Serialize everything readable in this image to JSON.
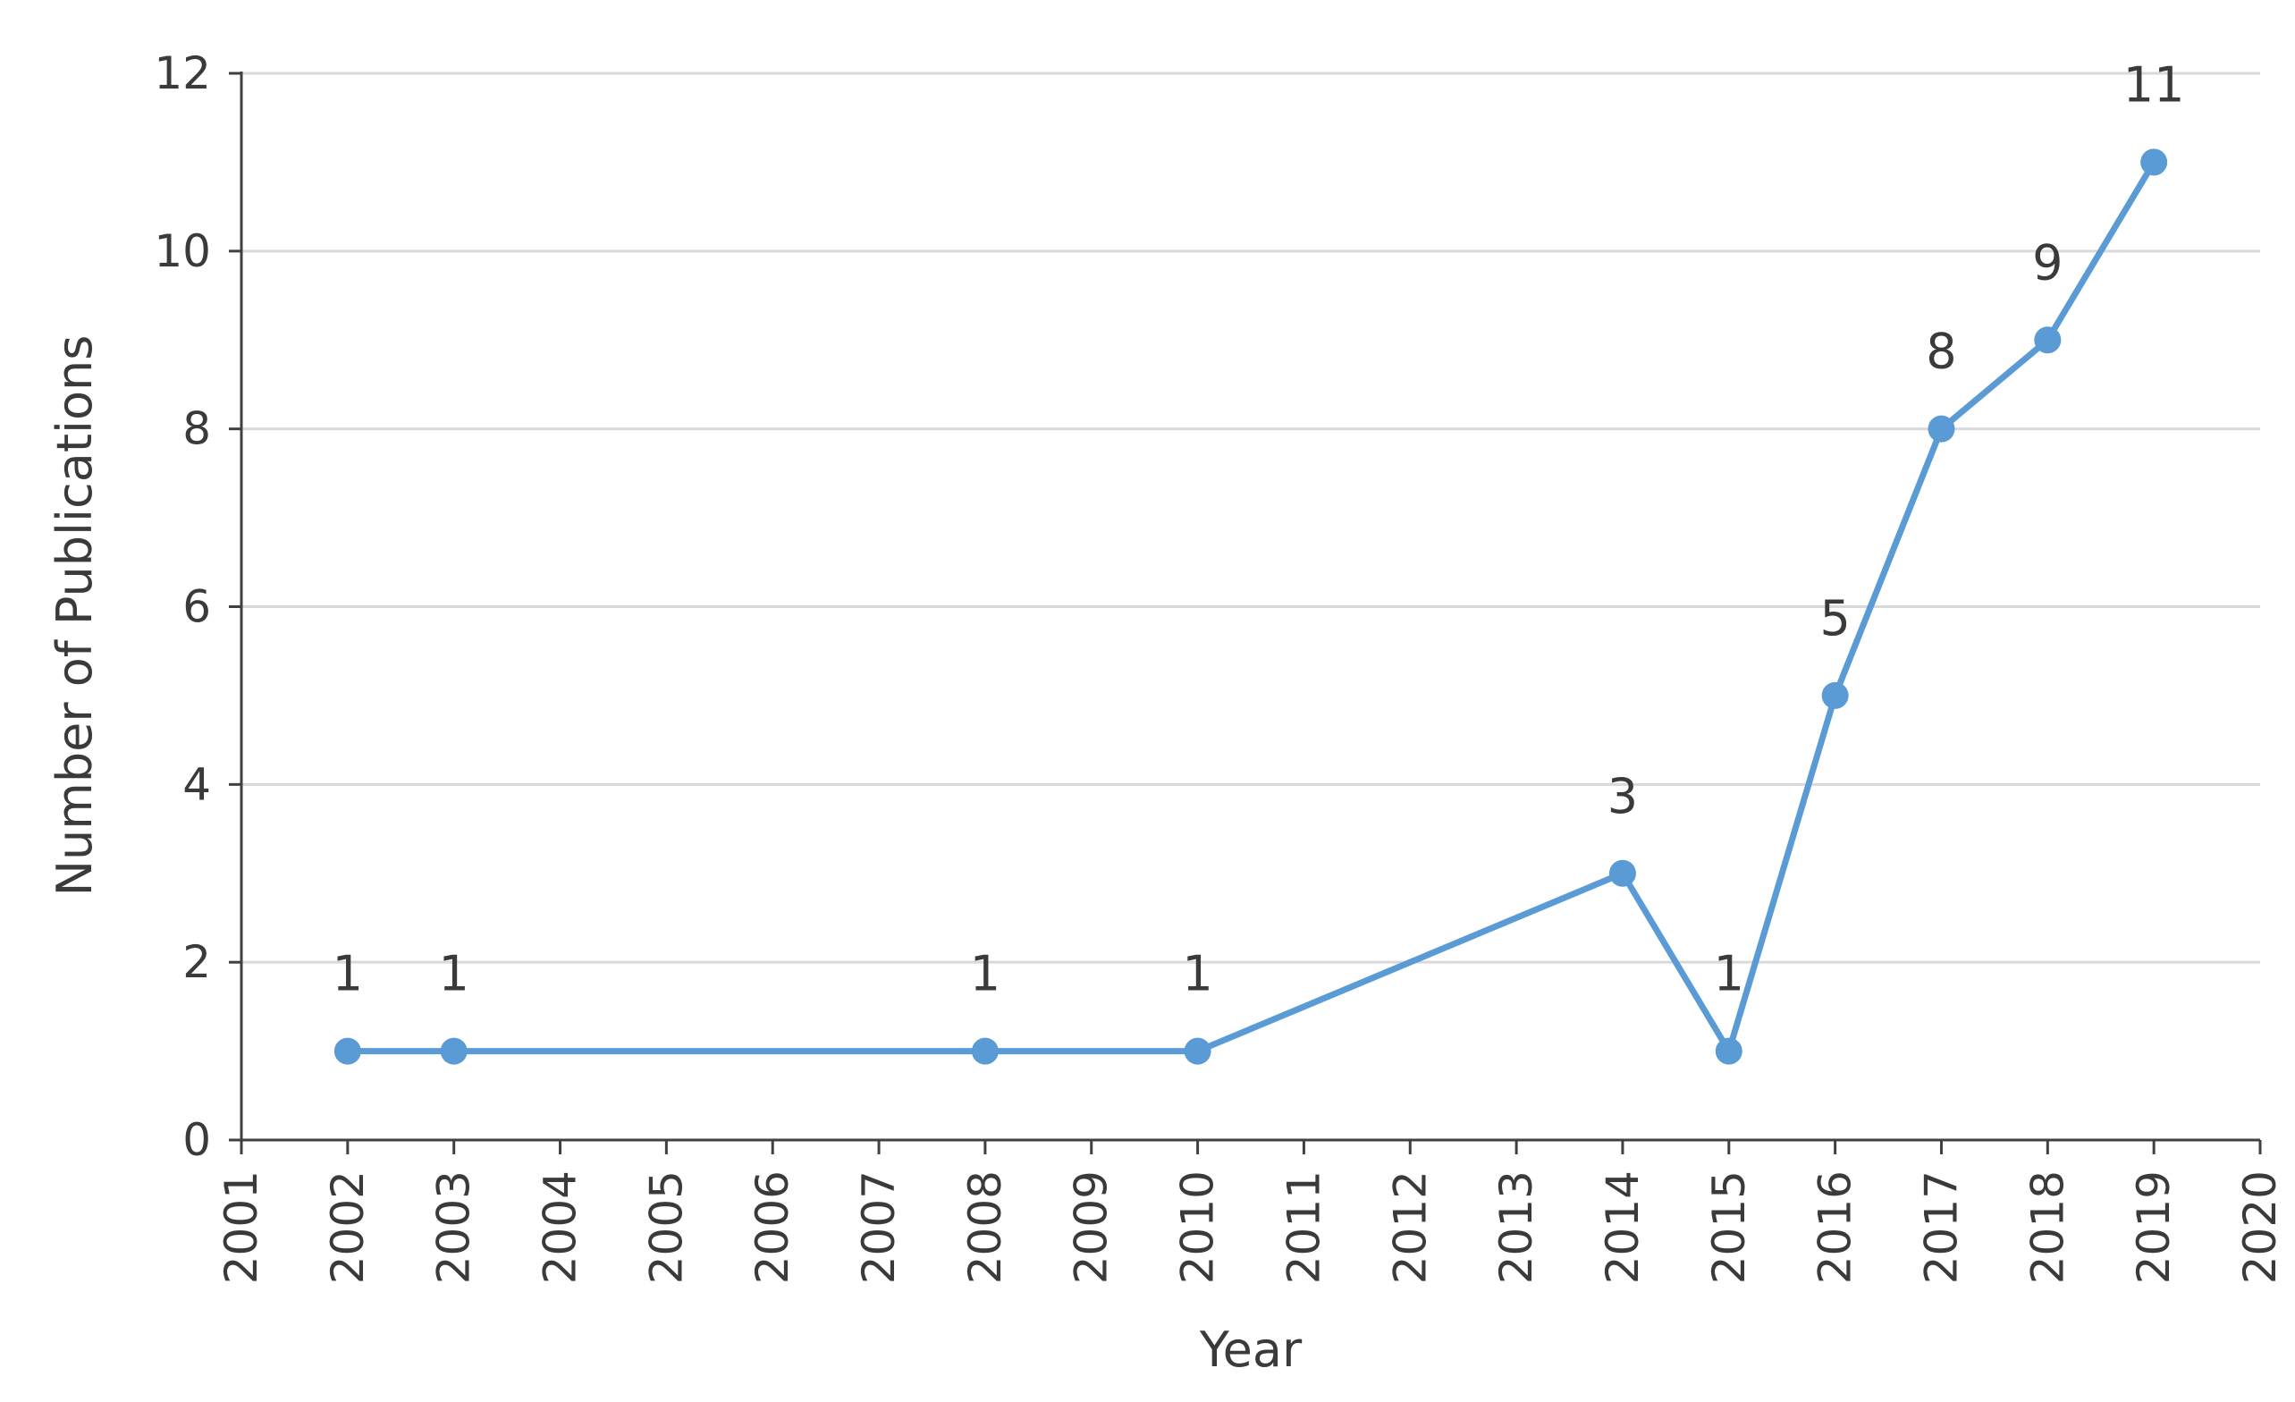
{
  "chart_data": {
    "type": "line",
    "xlabel": "Year",
    "ylabel": "Number of Publications",
    "x_ticks": [
      "2001",
      "2002",
      "2003",
      "2004",
      "2005",
      "2006",
      "2007",
      "2008",
      "2009",
      "2010",
      "2011",
      "2012",
      "2013",
      "2014",
      "2015",
      "2016",
      "2017",
      "2018",
      "2019",
      "2020"
    ],
    "y_ticks": [
      "0",
      "2",
      "4",
      "6",
      "8",
      "10",
      "12"
    ],
    "xlim": [
      2001,
      2020
    ],
    "ylim": [
      0,
      12
    ],
    "grid": "horizontal",
    "legend": "none",
    "series": [
      {
        "color": "#5b9bd5",
        "x": [
          2002,
          2003,
          2008,
          2010,
          2014,
          2015,
          2016,
          2017,
          2018,
          2019
        ],
        "y": [
          1,
          1,
          1,
          1,
          3,
          1,
          5,
          8,
          9,
          11
        ],
        "labels": [
          "1",
          "1",
          "1",
          "1",
          "3",
          "1",
          "5",
          "8",
          "9",
          "11"
        ]
      }
    ]
  }
}
